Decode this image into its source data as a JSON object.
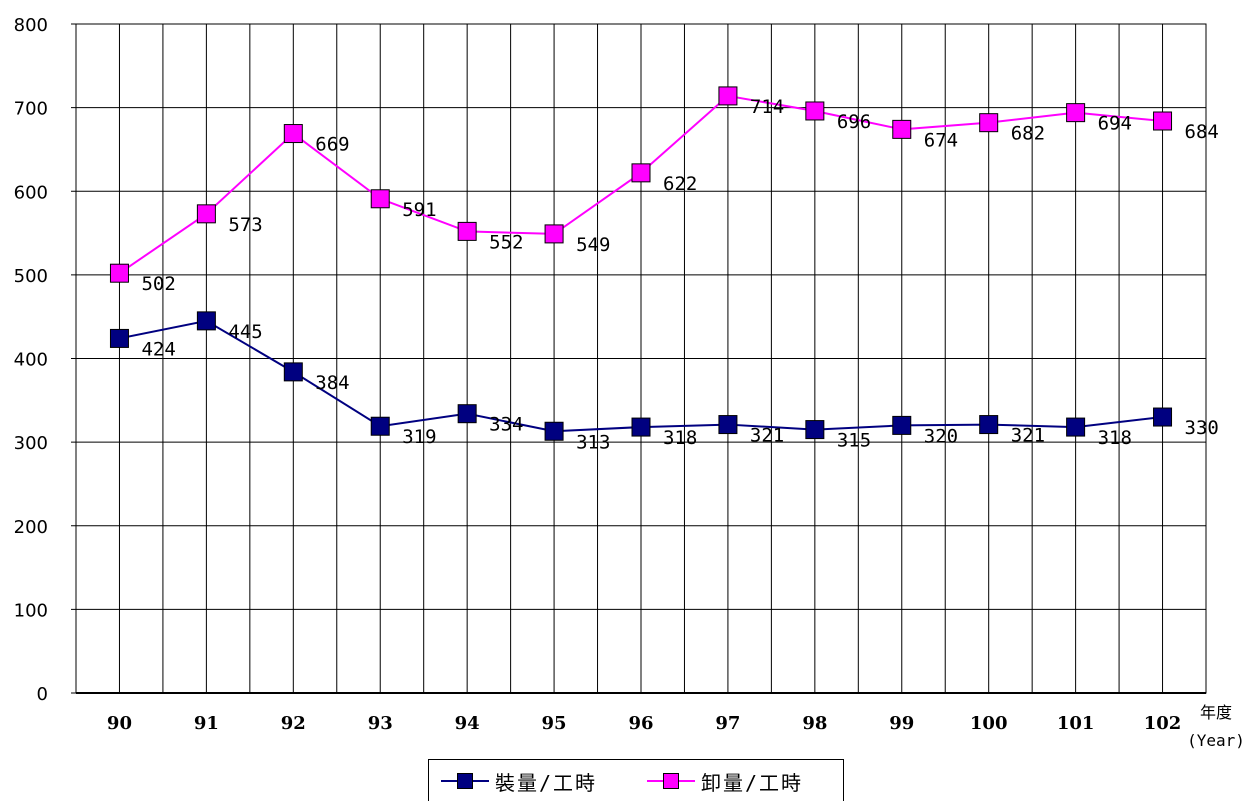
{
  "chart_data": {
    "type": "line",
    "title": "",
    "xlabel": "",
    "xlabel_lines": [
      "年度",
      "(Year)"
    ],
    "ylabel": "",
    "categories": [
      "90",
      "91",
      "92",
      "93",
      "94",
      "95",
      "96",
      "97",
      "98",
      "99",
      "100",
      "101",
      "102"
    ],
    "ylim": [
      0,
      800
    ],
    "yticks": [
      "0",
      "100",
      "200",
      "300",
      "400",
      "500",
      "600",
      "700",
      "800"
    ],
    "grid": true,
    "legend_position": "bottom",
    "series": [
      {
        "name": "裝量/工時",
        "color": "#000080",
        "marker": "square",
        "values": [
          424,
          445,
          384,
          319,
          334,
          313,
          318,
          321,
          315,
          320,
          321,
          318,
          330
        ]
      },
      {
        "name": "卸量/工時",
        "color": "#FF00FF",
        "marker": "square",
        "values": [
          502,
          573,
          669,
          591,
          552,
          549,
          622,
          714,
          696,
          674,
          682,
          694,
          684
        ]
      }
    ]
  }
}
